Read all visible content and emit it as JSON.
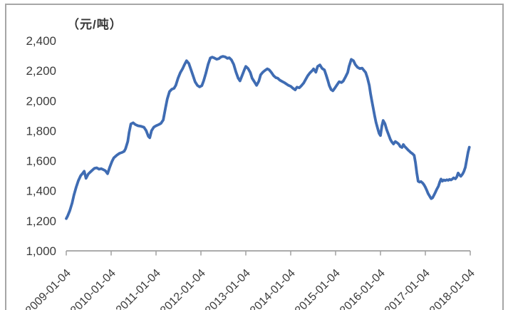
{
  "frame": {
    "border_color": "#a6a6a6",
    "background": "#ffffff"
  },
  "chart_data": {
    "type": "line",
    "title": "（元/吨）",
    "xlabel": "",
    "ylabel": "",
    "grid": false,
    "legend": "none",
    "markers": "none",
    "xlim": [
      2009,
      2018
    ],
    "ylim": [
      1000,
      2400
    ],
    "x_tick_labels": [
      "2009-01-04",
      "2010-01-04",
      "2011-01-04",
      "2012-01-04",
      "2013-01-04",
      "2014-01-04",
      "2015-01-04",
      "2016-01-04",
      "2017-01-04",
      "2018-01-04"
    ],
    "x_tick_values": [
      2009,
      2010,
      2011,
      2012,
      2013,
      2014,
      2015,
      2016,
      2017,
      2018
    ],
    "y_tick_labels": [
      "2,400",
      "2,200",
      "2,000",
      "1,800",
      "1,600",
      "1,400",
      "1,200",
      "1,000"
    ],
    "y_tick_values": [
      2400,
      2200,
      2000,
      1800,
      1600,
      1400,
      1200,
      1000
    ],
    "series": [
      {
        "color": "#3f6cb3",
        "points": [
          [
            2009.0,
            1215
          ],
          [
            2009.03,
            1232
          ],
          [
            2009.08,
            1268
          ],
          [
            2009.13,
            1318
          ],
          [
            2009.17,
            1370
          ],
          [
            2009.22,
            1424
          ],
          [
            2009.27,
            1468
          ],
          [
            2009.32,
            1500
          ],
          [
            2009.37,
            1518
          ],
          [
            2009.4,
            1530
          ],
          [
            2009.44,
            1483
          ],
          [
            2009.49,
            1512
          ],
          [
            2009.54,
            1526
          ],
          [
            2009.59,
            1540
          ],
          [
            2009.63,
            1550
          ],
          [
            2009.68,
            1553
          ],
          [
            2009.73,
            1544
          ],
          [
            2009.78,
            1547
          ],
          [
            2009.83,
            1540
          ],
          [
            2009.87,
            1534
          ],
          [
            2009.92,
            1514
          ],
          [
            2009.97,
            1558
          ],
          [
            2010.02,
            1597
          ],
          [
            2010.06,
            1620
          ],
          [
            2010.13,
            1638
          ],
          [
            2010.19,
            1650
          ],
          [
            2010.24,
            1655
          ],
          [
            2010.29,
            1663
          ],
          [
            2010.32,
            1680
          ],
          [
            2010.37,
            1728
          ],
          [
            2010.4,
            1788
          ],
          [
            2010.44,
            1845
          ],
          [
            2010.49,
            1853
          ],
          [
            2010.54,
            1841
          ],
          [
            2010.6,
            1833
          ],
          [
            2010.67,
            1829
          ],
          [
            2010.73,
            1823
          ],
          [
            2010.78,
            1801
          ],
          [
            2010.83,
            1762
          ],
          [
            2010.86,
            1753
          ],
          [
            2010.9,
            1800
          ],
          [
            2010.95,
            1824
          ],
          [
            2011.0,
            1833
          ],
          [
            2011.06,
            1841
          ],
          [
            2011.11,
            1849
          ],
          [
            2011.16,
            1872
          ],
          [
            2011.21,
            1950
          ],
          [
            2011.25,
            2012
          ],
          [
            2011.3,
            2060
          ],
          [
            2011.35,
            2076
          ],
          [
            2011.4,
            2082
          ],
          [
            2011.44,
            2102
          ],
          [
            2011.49,
            2150
          ],
          [
            2011.54,
            2186
          ],
          [
            2011.59,
            2212
          ],
          [
            2011.63,
            2238
          ],
          [
            2011.68,
            2266
          ],
          [
            2011.73,
            2248
          ],
          [
            2011.78,
            2206
          ],
          [
            2011.83,
            2162
          ],
          [
            2011.87,
            2126
          ],
          [
            2011.92,
            2102
          ],
          [
            2011.97,
            2092
          ],
          [
            2012.02,
            2100
          ],
          [
            2012.06,
            2132
          ],
          [
            2012.11,
            2182
          ],
          [
            2012.16,
            2242
          ],
          [
            2012.21,
            2284
          ],
          [
            2012.25,
            2290
          ],
          [
            2012.3,
            2284
          ],
          [
            2012.35,
            2276
          ],
          [
            2012.4,
            2280
          ],
          [
            2012.44,
            2290
          ],
          [
            2012.49,
            2295
          ],
          [
            2012.54,
            2292
          ],
          [
            2012.59,
            2282
          ],
          [
            2012.63,
            2286
          ],
          [
            2012.68,
            2272
          ],
          [
            2012.73,
            2242
          ],
          [
            2012.78,
            2192
          ],
          [
            2012.83,
            2150
          ],
          [
            2012.87,
            2132
          ],
          [
            2012.92,
            2170
          ],
          [
            2012.97,
            2208
          ],
          [
            2013.0,
            2228
          ],
          [
            2013.05,
            2215
          ],
          [
            2013.1,
            2188
          ],
          [
            2013.14,
            2150
          ],
          [
            2013.19,
            2126
          ],
          [
            2013.24,
            2102
          ],
          [
            2013.29,
            2130
          ],
          [
            2013.33,
            2172
          ],
          [
            2013.38,
            2190
          ],
          [
            2013.43,
            2202
          ],
          [
            2013.48,
            2212
          ],
          [
            2013.52,
            2206
          ],
          [
            2013.57,
            2188
          ],
          [
            2013.62,
            2166
          ],
          [
            2013.67,
            2153
          ],
          [
            2013.71,
            2150
          ],
          [
            2013.76,
            2136
          ],
          [
            2013.81,
            2128
          ],
          [
            2013.86,
            2120
          ],
          [
            2013.9,
            2112
          ],
          [
            2013.95,
            2102
          ],
          [
            2014.0,
            2096
          ],
          [
            2014.05,
            2083
          ],
          [
            2014.1,
            2072
          ],
          [
            2014.14,
            2090
          ],
          [
            2014.19,
            2086
          ],
          [
            2014.24,
            2100
          ],
          [
            2014.29,
            2118
          ],
          [
            2014.33,
            2140
          ],
          [
            2014.38,
            2166
          ],
          [
            2014.43,
            2186
          ],
          [
            2014.48,
            2200
          ],
          [
            2014.51,
            2212
          ],
          [
            2014.56,
            2190
          ],
          [
            2014.6,
            2228
          ],
          [
            2014.65,
            2238
          ],
          [
            2014.7,
            2215
          ],
          [
            2014.75,
            2205
          ],
          [
            2014.79,
            2170
          ],
          [
            2014.83,
            2132
          ],
          [
            2014.86,
            2100
          ],
          [
            2014.9,
            2074
          ],
          [
            2014.94,
            2066
          ],
          [
            2014.98,
            2082
          ],
          [
            2015.03,
            2105
          ],
          [
            2015.08,
            2126
          ],
          [
            2015.13,
            2121
          ],
          [
            2015.17,
            2130
          ],
          [
            2015.22,
            2158
          ],
          [
            2015.27,
            2188
          ],
          [
            2015.3,
            2228
          ],
          [
            2015.35,
            2275
          ],
          [
            2015.4,
            2265
          ],
          [
            2015.44,
            2240
          ],
          [
            2015.49,
            2222
          ],
          [
            2015.54,
            2214
          ],
          [
            2015.59,
            2217
          ],
          [
            2015.63,
            2202
          ],
          [
            2015.67,
            2188
          ],
          [
            2015.71,
            2152
          ],
          [
            2015.75,
            2102
          ],
          [
            2015.78,
            2046
          ],
          [
            2015.81,
            1996
          ],
          [
            2015.84,
            1948
          ],
          [
            2015.87,
            1900
          ],
          [
            2015.9,
            1856
          ],
          [
            2015.94,
            1813
          ],
          [
            2015.97,
            1782
          ],
          [
            2016.0,
            1768
          ],
          [
            2016.03,
            1830
          ],
          [
            2016.06,
            1868
          ],
          [
            2016.1,
            1846
          ],
          [
            2016.14,
            1806
          ],
          [
            2016.19,
            1766
          ],
          [
            2016.22,
            1742
          ],
          [
            2016.25,
            1726
          ],
          [
            2016.29,
            1712
          ],
          [
            2016.33,
            1728
          ],
          [
            2016.38,
            1718
          ],
          [
            2016.41,
            1710
          ],
          [
            2016.44,
            1695
          ],
          [
            2016.48,
            1688
          ],
          [
            2016.51,
            1708
          ],
          [
            2016.54,
            1695
          ],
          [
            2016.57,
            1686
          ],
          [
            2016.62,
            1670
          ],
          [
            2016.65,
            1662
          ],
          [
            2016.68,
            1654
          ],
          [
            2016.71,
            1648
          ],
          [
            2016.75,
            1636
          ],
          [
            2016.78,
            1588
          ],
          [
            2016.81,
            1518
          ],
          [
            2016.84,
            1463
          ],
          [
            2016.87,
            1458
          ],
          [
            2016.9,
            1462
          ],
          [
            2016.94,
            1452
          ],
          [
            2016.97,
            1440
          ],
          [
            2017.0,
            1424
          ],
          [
            2017.03,
            1404
          ],
          [
            2017.06,
            1382
          ],
          [
            2017.1,
            1362
          ],
          [
            2017.13,
            1348
          ],
          [
            2017.16,
            1353
          ],
          [
            2017.19,
            1370
          ],
          [
            2017.22,
            1388
          ],
          [
            2017.25,
            1408
          ],
          [
            2017.29,
            1430
          ],
          [
            2017.32,
            1458
          ],
          [
            2017.35,
            1478
          ],
          [
            2017.38,
            1464
          ],
          [
            2017.41,
            1472
          ],
          [
            2017.44,
            1468
          ],
          [
            2017.48,
            1473
          ],
          [
            2017.51,
            1470
          ],
          [
            2017.54,
            1476
          ],
          [
            2017.57,
            1472
          ],
          [
            2017.6,
            1478
          ],
          [
            2017.63,
            1486
          ],
          [
            2017.67,
            1480
          ],
          [
            2017.7,
            1492
          ],
          [
            2017.73,
            1518
          ],
          [
            2017.76,
            1505
          ],
          [
            2017.79,
            1497
          ],
          [
            2017.83,
            1512
          ],
          [
            2017.86,
            1530
          ],
          [
            2017.89,
            1556
          ],
          [
            2017.92,
            1606
          ],
          [
            2017.95,
            1656
          ],
          [
            2017.98,
            1690
          ]
        ]
      }
    ],
    "style": {
      "axis_color": "#a0a0a0",
      "label_color": "#3b3b3b",
      "x_label_rotation_deg": -45
    }
  }
}
